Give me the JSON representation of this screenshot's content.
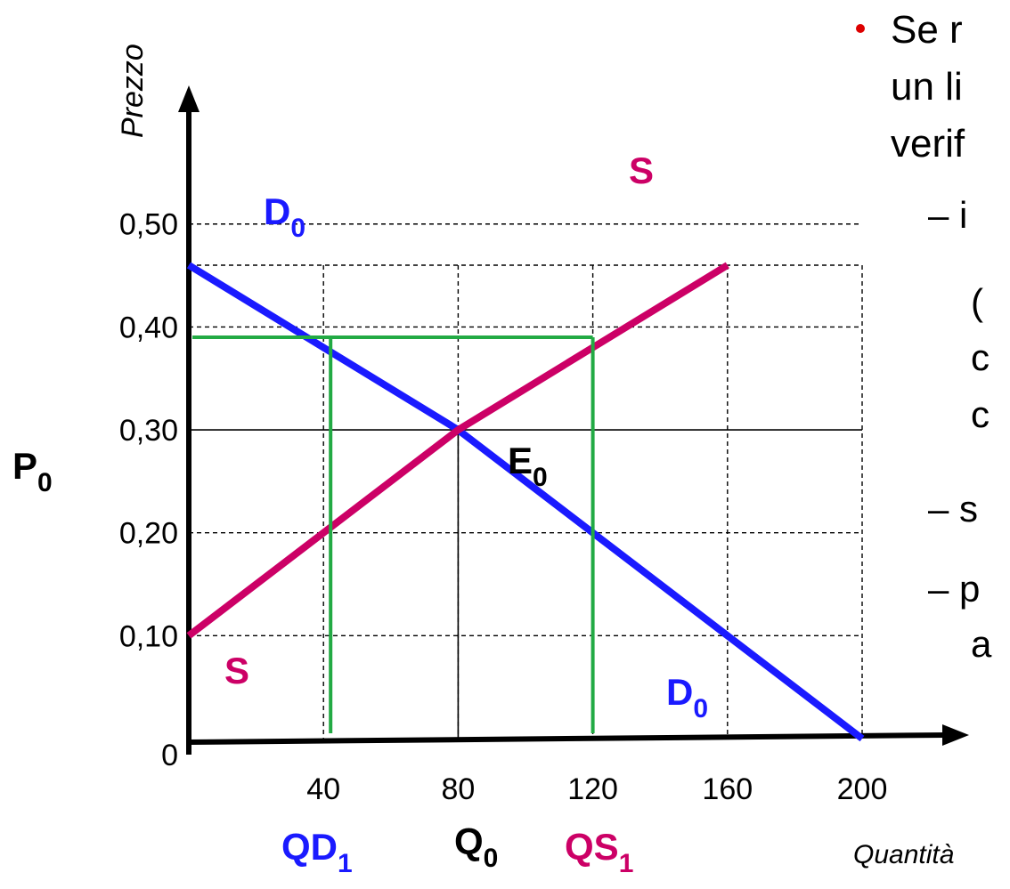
{
  "chart_data": {
    "type": "line",
    "xlabel": "Quantità",
    "ylabel": "Prezzo",
    "xlim": [
      0,
      200
    ],
    "ylim": [
      0,
      0.5
    ],
    "x_ticks": [
      "40",
      "80",
      "120",
      "160",
      "200"
    ],
    "y_ticks": [
      "0",
      "0,10",
      "0,20",
      "0,30",
      "0,40",
      "0,50"
    ],
    "grid": true,
    "series": [
      {
        "name": "D",
        "name_sub": "0",
        "color": "#1a1aff",
        "x": [
          0,
          80,
          200
        ],
        "y": [
          0.46,
          0.3,
          0.0
        ]
      },
      {
        "name": "S",
        "color": "#cc0066",
        "x": [
          0,
          80,
          160
        ],
        "y": [
          0.1,
          0.3,
          0.46
        ]
      }
    ],
    "price_ceiling": {
      "y": 0.39,
      "x_left": 40,
      "x_right": 120,
      "color": "#22aa44"
    },
    "equilibrium": {
      "x": 80,
      "y": 0.3,
      "label": "E",
      "label_sub": "0"
    },
    "annotations": {
      "p0": {
        "main": "P",
        "sub": "0"
      },
      "q0": {
        "main": "Q",
        "sub": "0"
      },
      "qd1": {
        "main": "QD",
        "sub": "1"
      },
      "qs1": {
        "main": "QS",
        "sub": "1"
      }
    }
  },
  "bullet_text": {
    "line1": "Se r",
    "line2": "un li",
    "line3": "verif",
    "sub1": "– i",
    "sub1_cont1": "(",
    "sub1_cont2": "c",
    "sub1_cont3": "c",
    "sub2": "– s",
    "sub3": "– p",
    "sub3_cont": "a"
  },
  "colors": {
    "bullet": "#dd0000",
    "blue": "#1a1aff",
    "magenta": "#cc0066",
    "green": "#22aa44"
  }
}
